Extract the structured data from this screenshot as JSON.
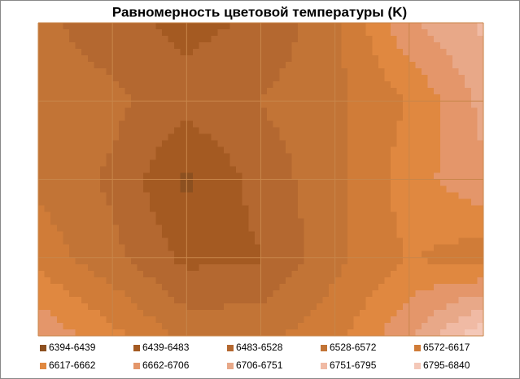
{
  "chart_data": {
    "type": "contour",
    "title": "Равномерность цветовой температуры (K)",
    "levels": [
      6394,
      6439,
      6483,
      6528,
      6572,
      6617,
      6662,
      6706,
      6751,
      6795,
      6840
    ],
    "series": [
      {
        "name": "6394-6439",
        "color": "#8c5020"
      },
      {
        "name": "6439-6483",
        "color": "#a45a22"
      },
      {
        "name": "6483-6528",
        "color": "#b46830"
      },
      {
        "name": "6528-6572",
        "color": "#c27436"
      },
      {
        "name": "6572-6617",
        "color": "#d07c38"
      },
      {
        "name": "6617-6662",
        "color": "#e08840"
      },
      {
        "name": "6662-6706",
        "color": "#e4966a"
      },
      {
        "name": "6706-6751",
        "color": "#e8a888"
      },
      {
        "name": "6751-6795",
        "color": "#f0baa4"
      },
      {
        "name": "6795-6840",
        "color": "#f4c8b8"
      }
    ],
    "z": [
      [
        6540,
        6500,
        6470,
        6490,
        6560,
        6700,
        6760
      ],
      [
        6560,
        6540,
        6500,
        6530,
        6560,
        6620,
        6720
      ],
      [
        6560,
        6520,
        6430,
        6500,
        6560,
        6640,
        6700
      ],
      [
        6600,
        6540,
        6470,
        6480,
        6560,
        6620,
        6590
      ],
      [
        6700,
        6630,
        6560,
        6560,
        6600,
        6700,
        6840
      ]
    ],
    "grid": true
  }
}
